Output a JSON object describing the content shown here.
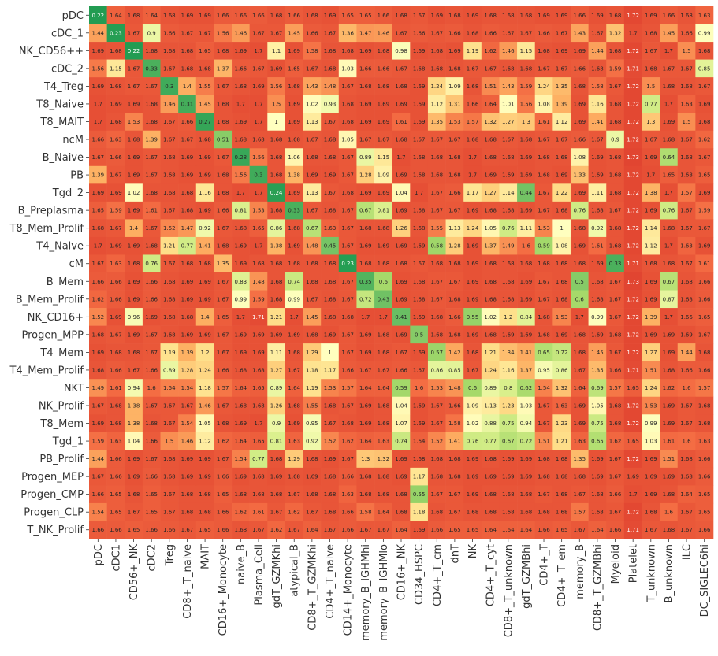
{
  "chart_data": {
    "type": "heatmap",
    "x_categories": [
      "pDC",
      "cDC1",
      "CD56+_NK",
      "cDC2",
      "Treg",
      "CD8+_T_naive",
      "MAIT",
      "CD16+_Monocyte",
      "naive_B",
      "Plasma_Cell",
      "gdT_GZMKhi",
      "atypical_B",
      "CD8+_T_GZMKhi",
      "CD4+_T_naive",
      "CD14+_Monocyte",
      "memory_B_IGHMhi",
      "memory_B_IGHMlo",
      "CD16+_NK",
      "CD34_HSPC",
      "CD4+_T_cm",
      "dnT",
      "NK",
      "CD4+_T_cyt",
      "CD8+_T_unknown",
      "gdT_GZMBhi",
      "CD4+_T",
      "CD4+_T_em",
      "memory_B",
      "CD8+_T_GZMBhi",
      "Myeloid",
      "Platelet",
      "T_unknown",
      "B_unknown",
      "ILC",
      "DC_SIGLEC6hi"
    ],
    "y_categories": [
      "pDC",
      "cDC_1",
      "NK_CD56++",
      "cDC_2",
      "T4_Treg",
      "T8_Naive",
      "T8_MAIT",
      "ncM",
      "B_Naive",
      "PB",
      "Tgd_2",
      "B_Preplasma",
      "T8_Mem_Prolif",
      "T4_Naive",
      "cM",
      "B_Mem",
      "B_Mem_Prolif",
      "NK_CD16+",
      "Progen_MPP",
      "T4_Mem",
      "T4_Mem_Prolif",
      "NKT",
      "NK_Prolif",
      "T8_Mem",
      "Tgd_1",
      "PB_Prolif",
      "Progen_MEP",
      "Progen_CMP",
      "Progen_CLP",
      "T_NK_Prolif"
    ],
    "values": [
      [
        0.22,
        1.64,
        1.68,
        1.64,
        1.68,
        1.69,
        1.69,
        1.66,
        1.66,
        1.66,
        1.68,
        1.66,
        1.68,
        1.69,
        1.65,
        1.65,
        1.66,
        1.68,
        1.67,
        1.69,
        1.68,
        1.69,
        1.68,
        1.68,
        1.68,
        1.69,
        1.69,
        1.66,
        1.69,
        1.68,
        1.72,
        1.69,
        1.66,
        1.68,
        1.63
      ],
      [
        1.44,
        0.23,
        1.67,
        0.9,
        1.66,
        1.67,
        1.67,
        1.56,
        1.46,
        1.67,
        1.67,
        1.45,
        1.66,
        1.67,
        1.36,
        1.47,
        1.46,
        1.67,
        1.66,
        1.67,
        1.66,
        1.68,
        1.66,
        1.67,
        1.67,
        1.66,
        1.67,
        1.43,
        1.67,
        1.32,
        1.7,
        1.68,
        1.45,
        1.66,
        0.99
      ],
      [
        1.69,
        1.68,
        0.22,
        1.68,
        1.68,
        1.68,
        1.65,
        1.68,
        1.69,
        1.7,
        1.1,
        1.69,
        1.58,
        1.68,
        1.68,
        1.69,
        1.68,
        0.98,
        1.69,
        1.68,
        1.69,
        1.19,
        1.62,
        1.46,
        1.15,
        1.68,
        1.69,
        1.69,
        1.44,
        1.68,
        1.72,
        1.67,
        1.7,
        1.5,
        1.68
      ],
      [
        1.56,
        1.15,
        1.67,
        0.33,
        1.67,
        1.68,
        1.68,
        1.37,
        1.66,
        1.67,
        1.69,
        1.65,
        1.67,
        1.68,
        1.03,
        1.66,
        1.66,
        1.67,
        1.68,
        1.68,
        1.68,
        1.67,
        1.67,
        1.68,
        1.68,
        1.67,
        1.67,
        1.66,
        1.68,
        1.59,
        1.71,
        1.68,
        1.67,
        1.67,
        0.85
      ],
      [
        1.69,
        1.68,
        1.67,
        1.67,
        0.3,
        1.4,
        1.55,
        1.67,
        1.68,
        1.69,
        1.56,
        1.68,
        1.43,
        1.48,
        1.67,
        1.68,
        1.68,
        1.68,
        1.69,
        1.24,
        1.09,
        1.68,
        1.51,
        1.43,
        1.59,
        1.24,
        1.35,
        1.68,
        1.58,
        1.67,
        1.72,
        1.5,
        1.68,
        1.68,
        1.67
      ],
      [
        1.7,
        1.69,
        1.69,
        1.68,
        1.46,
        0.31,
        1.45,
        1.68,
        1.7,
        1.7,
        1.5,
        1.69,
        1.02,
        0.93,
        1.68,
        1.69,
        1.69,
        1.69,
        1.69,
        1.12,
        1.31,
        1.66,
        1.64,
        1.01,
        1.56,
        1.08,
        1.39,
        1.69,
        1.16,
        1.68,
        1.72,
        0.77,
        1.7,
        1.63,
        1.69
      ],
      [
        1.7,
        1.68,
        1.53,
        1.68,
        1.67,
        1.66,
        0.27,
        1.68,
        1.69,
        1.7,
        1.0,
        1.69,
        1.13,
        1.67,
        1.68,
        1.69,
        1.69,
        1.61,
        1.69,
        1.35,
        1.53,
        1.57,
        1.32,
        1.27,
        1.3,
        1.61,
        1.12,
        1.69,
        1.41,
        1.68,
        1.72,
        1.3,
        1.69,
        1.5,
        1.68
      ],
      [
        1.66,
        1.63,
        1.68,
        1.39,
        1.67,
        1.67,
        1.68,
        0.51,
        1.68,
        1.68,
        1.68,
        1.68,
        1.67,
        1.68,
        1.05,
        1.67,
        1.67,
        1.68,
        1.67,
        1.67,
        1.67,
        1.68,
        1.68,
        1.67,
        1.68,
        1.67,
        1.67,
        1.66,
        1.67,
        0.9,
        1.72,
        1.67,
        1.68,
        1.67,
        1.62
      ],
      [
        1.67,
        1.66,
        1.69,
        1.67,
        1.68,
        1.69,
        1.69,
        1.67,
        0.28,
        1.56,
        1.68,
        1.06,
        1.68,
        1.68,
        1.67,
        0.89,
        1.15,
        1.7,
        1.68,
        1.68,
        1.68,
        1.7,
        1.68,
        1.68,
        1.69,
        1.68,
        1.68,
        1.08,
        1.69,
        1.68,
        1.73,
        1.69,
        0.64,
        1.68,
        1.67
      ],
      [
        1.39,
        1.67,
        1.69,
        1.67,
        1.68,
        1.69,
        1.69,
        1.68,
        1.56,
        0.3,
        1.68,
        1.38,
        1.69,
        1.69,
        1.67,
        1.28,
        1.09,
        1.69,
        1.68,
        1.68,
        1.68,
        1.7,
        1.69,
        1.69,
        1.69,
        1.68,
        1.69,
        1.33,
        1.69,
        1.68,
        1.72,
        1.7,
        1.65,
        1.68,
        1.65
      ],
      [
        1.69,
        1.69,
        1.02,
        1.68,
        1.68,
        1.68,
        1.16,
        1.68,
        1.7,
        1.7,
        0.24,
        1.69,
        1.13,
        1.67,
        1.68,
        1.69,
        1.69,
        1.04,
        1.7,
        1.67,
        1.66,
        1.17,
        1.27,
        1.14,
        0.44,
        1.67,
        1.22,
        1.69,
        1.11,
        1.68,
        1.72,
        1.38,
        1.7,
        1.57,
        1.69
      ],
      [
        1.65,
        1.59,
        1.69,
        1.61,
        1.67,
        1.68,
        1.69,
        1.66,
        0.81,
        1.53,
        1.68,
        0.33,
        1.67,
        1.68,
        1.67,
        0.67,
        0.81,
        1.69,
        1.68,
        1.67,
        1.67,
        1.69,
        1.68,
        1.68,
        1.69,
        1.67,
        1.68,
        0.76,
        1.68,
        1.67,
        1.72,
        1.69,
        0.76,
        1.67,
        1.59
      ],
      [
        1.68,
        1.67,
        1.4,
        1.67,
        1.52,
        1.47,
        0.92,
        1.67,
        1.68,
        1.65,
        0.86,
        1.68,
        0.67,
        1.63,
        1.67,
        1.68,
        1.68,
        1.26,
        1.68,
        1.55,
        1.13,
        1.24,
        1.05,
        0.76,
        1.11,
        1.53,
        1.0,
        1.68,
        0.92,
        1.68,
        1.72,
        1.14,
        1.68,
        1.67,
        1.67
      ],
      [
        1.7,
        1.69,
        1.69,
        1.68,
        1.21,
        0.77,
        1.41,
        1.68,
        1.69,
        1.7,
        1.38,
        1.69,
        1.48,
        0.45,
        1.67,
        1.69,
        1.69,
        1.69,
        1.69,
        0.58,
        1.28,
        1.69,
        1.37,
        1.49,
        1.6,
        0.59,
        1.08,
        1.69,
        1.61,
        1.68,
        1.72,
        1.12,
        1.7,
        1.63,
        1.69
      ],
      [
        1.67,
        1.63,
        1.68,
        0.76,
        1.67,
        1.68,
        1.68,
        1.35,
        1.69,
        1.68,
        1.68,
        1.68,
        1.68,
        1.68,
        0.23,
        1.68,
        1.68,
        1.68,
        1.67,
        1.68,
        1.68,
        1.69,
        1.68,
        1.68,
        1.68,
        1.68,
        1.68,
        1.68,
        1.69,
        0.33,
        1.71,
        1.68,
        1.68,
        1.67,
        1.61
      ],
      [
        1.66,
        1.66,
        1.69,
        1.66,
        1.68,
        1.69,
        1.69,
        1.67,
        0.83,
        1.48,
        1.68,
        0.74,
        1.68,
        1.68,
        1.67,
        0.35,
        0.6,
        1.69,
        1.68,
        1.67,
        1.67,
        1.69,
        1.68,
        1.68,
        1.69,
        1.67,
        1.68,
        0.5,
        1.68,
        1.67,
        1.73,
        1.69,
        0.67,
        1.68,
        1.66
      ],
      [
        1.62,
        1.66,
        1.69,
        1.66,
        1.68,
        1.69,
        1.69,
        1.67,
        0.99,
        1.59,
        1.68,
        0.99,
        1.67,
        1.68,
        1.67,
        0.72,
        0.43,
        1.69,
        1.68,
        1.67,
        1.68,
        1.69,
        1.68,
        1.68,
        1.69,
        1.67,
        1.68,
        0.6,
        1.68,
        1.67,
        1.72,
        1.69,
        0.87,
        1.68,
        1.66
      ],
      [
        1.52,
        1.69,
        0.96,
        1.69,
        1.68,
        1.68,
        1.4,
        1.65,
        1.7,
        1.71,
        1.21,
        1.7,
        1.45,
        1.68,
        1.68,
        1.7,
        1.7,
        0.41,
        1.69,
        1.68,
        1.66,
        0.55,
        1.02,
        1.2,
        0.84,
        1.68,
        1.53,
        1.7,
        0.99,
        1.67,
        1.72,
        1.39,
        1.7,
        1.66,
        1.65
      ],
      [
        1.68,
        1.67,
        1.69,
        1.67,
        1.68,
        1.69,
        1.69,
        1.67,
        1.69,
        1.69,
        1.69,
        1.69,
        1.68,
        1.69,
        1.67,
        1.69,
        1.68,
        1.69,
        0.5,
        1.68,
        1.68,
        1.69,
        1.68,
        1.69,
        1.69,
        1.68,
        1.69,
        1.68,
        1.69,
        1.68,
        1.72,
        1.69,
        1.69,
        1.69,
        1.67
      ],
      [
        1.69,
        1.68,
        1.68,
        1.67,
        1.19,
        1.39,
        1.2,
        1.67,
        1.69,
        1.69,
        1.11,
        1.68,
        1.29,
        1.0,
        1.67,
        1.69,
        1.68,
        1.67,
        1.69,
        0.57,
        1.42,
        1.68,
        1.21,
        1.34,
        1.41,
        0.65,
        0.72,
        1.68,
        1.45,
        1.67,
        1.72,
        1.27,
        1.69,
        1.44,
        1.68
      ],
      [
        1.68,
        1.66,
        1.67,
        1.66,
        0.89,
        1.28,
        1.24,
        1.66,
        1.68,
        1.68,
        1.27,
        1.67,
        1.18,
        1.17,
        1.66,
        1.67,
        1.67,
        1.66,
        1.67,
        0.86,
        0.85,
        1.67,
        1.24,
        1.16,
        1.37,
        0.95,
        0.86,
        1.67,
        1.35,
        1.66,
        1.71,
        1.51,
        1.68,
        1.66,
        1.66
      ],
      [
        1.49,
        1.61,
        0.94,
        1.6,
        1.54,
        1.54,
        1.18,
        1.57,
        1.64,
        1.65,
        0.89,
        1.64,
        1.19,
        1.53,
        1.57,
        1.64,
        1.64,
        0.59,
        1.6,
        1.53,
        1.48,
        0.6,
        0.89,
        0.8,
        0.62,
        1.54,
        1.32,
        1.64,
        0.69,
        1.57,
        1.65,
        1.24,
        1.62,
        1.6,
        1.57
      ],
      [
        1.67,
        1.68,
        1.38,
        1.67,
        1.67,
        1.67,
        1.46,
        1.67,
        1.68,
        1.68,
        1.26,
        1.68,
        1.55,
        1.68,
        1.67,
        1.69,
        1.68,
        1.04,
        1.69,
        1.67,
        1.66,
        1.09,
        1.13,
        1.23,
        1.03,
        1.67,
        1.63,
        1.69,
        1.05,
        1.68,
        1.72,
        1.53,
        1.69,
        1.67,
        1.68
      ],
      [
        1.69,
        1.68,
        1.38,
        1.68,
        1.67,
        1.54,
        1.05,
        1.68,
        1.69,
        1.7,
        0.9,
        1.69,
        0.95,
        1.67,
        1.68,
        1.69,
        1.68,
        1.07,
        1.69,
        1.67,
        1.58,
        1.02,
        0.88,
        0.75,
        0.94,
        1.67,
        1.23,
        1.69,
        0.75,
        1.68,
        1.72,
        0.99,
        1.69,
        1.67,
        1.68
      ],
      [
        1.59,
        1.63,
        1.04,
        1.66,
        1.5,
        1.46,
        1.12,
        1.62,
        1.64,
        1.65,
        0.81,
        1.63,
        0.92,
        1.52,
        1.62,
        1.64,
        1.63,
        0.74,
        1.64,
        1.52,
        1.41,
        0.76,
        0.77,
        0.67,
        0.72,
        1.51,
        1.21,
        1.63,
        0.65,
        1.62,
        1.65,
        1.03,
        1.61,
        1.6,
        1.63
      ],
      [
        1.44,
        1.66,
        1.69,
        1.67,
        1.68,
        1.69,
        1.69,
        1.67,
        1.54,
        0.77,
        1.68,
        1.29,
        1.68,
        1.69,
        1.67,
        1.3,
        1.32,
        1.69,
        1.68,
        1.68,
        1.68,
        1.69,
        1.68,
        1.69,
        1.69,
        1.68,
        1.68,
        1.35,
        1.69,
        1.67,
        1.72,
        1.69,
        1.51,
        1.68,
        1.66
      ],
      [
        1.67,
        1.66,
        1.69,
        1.66,
        1.68,
        1.69,
        1.69,
        1.66,
        1.69,
        1.68,
        1.69,
        1.68,
        1.69,
        1.68,
        1.66,
        1.68,
        1.68,
        1.69,
        1.17,
        1.68,
        1.68,
        1.69,
        1.69,
        1.69,
        1.69,
        1.68,
        1.68,
        1.68,
        1.69,
        1.67,
        1.69,
        1.69,
        1.69,
        1.68,
        1.66
      ],
      [
        1.66,
        1.65,
        1.68,
        1.65,
        1.67,
        1.68,
        1.68,
        1.65,
        1.68,
        1.68,
        1.68,
        1.67,
        1.68,
        1.68,
        1.63,
        1.68,
        1.68,
        1.68,
        0.55,
        1.67,
        1.67,
        1.69,
        1.68,
        1.68,
        1.68,
        1.67,
        1.68,
        1.67,
        1.68,
        1.66,
        1.7,
        1.69,
        1.68,
        1.64,
        1.65
      ],
      [
        1.54,
        1.65,
        1.67,
        1.65,
        1.67,
        1.68,
        1.68,
        1.66,
        1.62,
        1.61,
        1.67,
        1.62,
        1.67,
        1.68,
        1.66,
        1.58,
        1.64,
        1.68,
        1.18,
        1.68,
        1.67,
        1.68,
        1.68,
        1.68,
        1.68,
        1.68,
        1.68,
        1.57,
        1.68,
        1.67,
        1.72,
        1.68,
        1.6,
        1.67,
        1.65
      ],
      [
        1.66,
        1.66,
        1.65,
        1.66,
        1.66,
        1.67,
        1.65,
        1.66,
        1.68,
        1.67,
        1.62,
        1.67,
        1.64,
        1.67,
        1.66,
        1.67,
        1.67,
        1.64,
        1.69,
        1.66,
        1.65,
        1.65,
        1.64,
        1.64,
        1.64,
        1.66,
        1.65,
        1.67,
        1.64,
        1.66,
        1.71,
        1.67,
        1.68,
        1.67,
        1.66
      ]
    ],
    "colormap": "RdYlGn_r",
    "vmin": 0,
    "vmax": 2
  }
}
